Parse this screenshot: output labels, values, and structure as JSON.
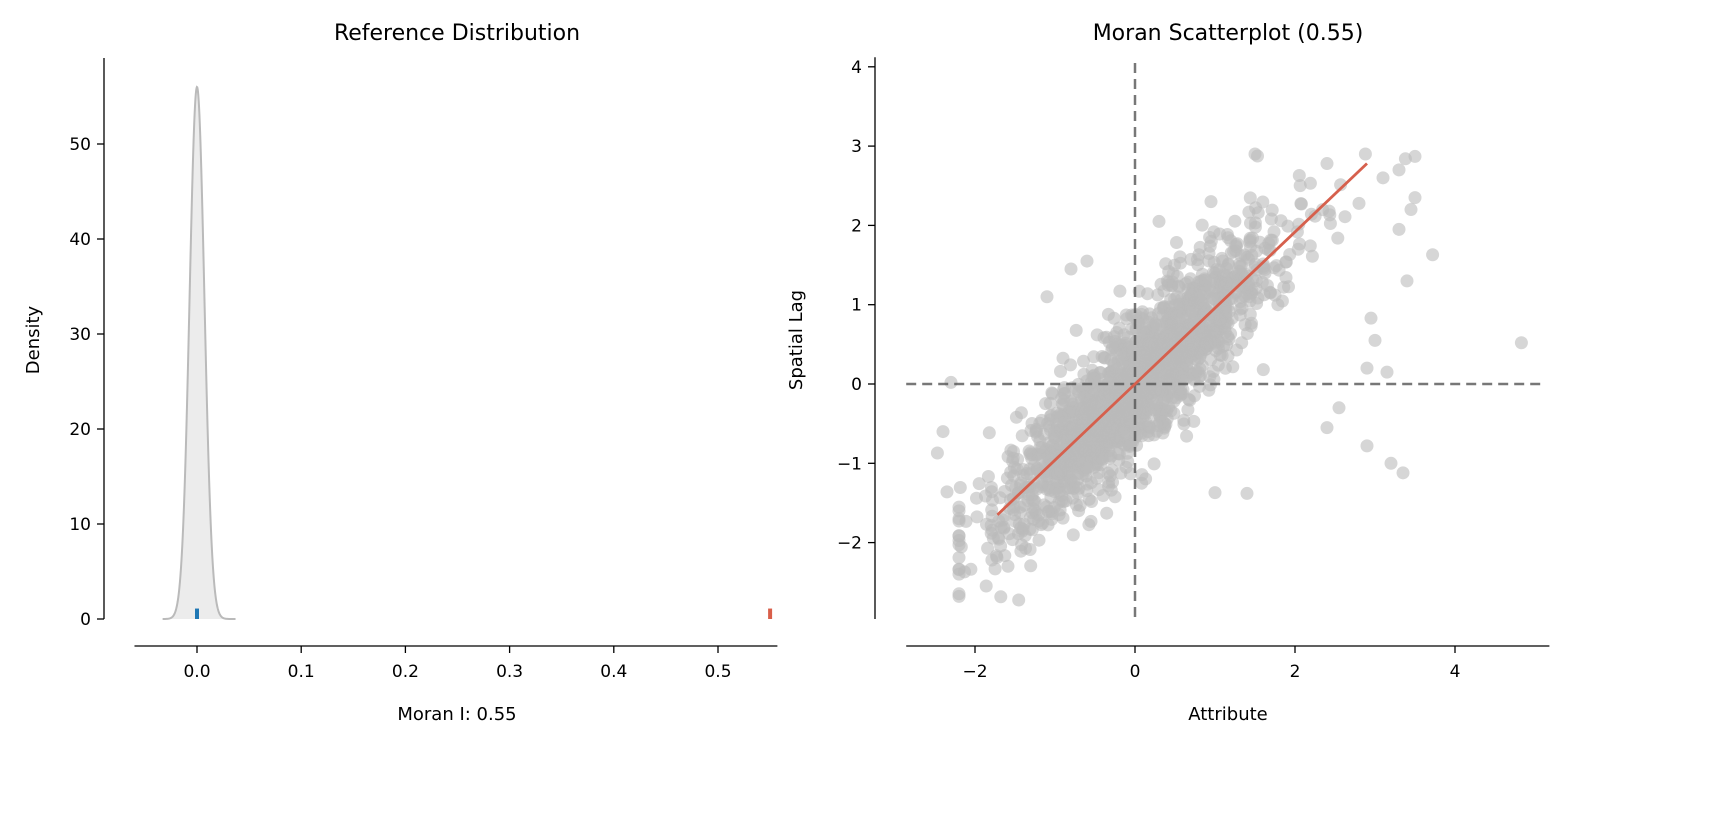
{
  "chart_data": [
    {
      "type": "area",
      "title": "Reference Distribution",
      "xlabel": "Moran I: 0.55",
      "ylabel": "Density",
      "xlim": [
        -0.06,
        0.557
      ],
      "ylim": [
        0,
        59
      ],
      "xticks": [
        0.0,
        0.1,
        0.2,
        0.3,
        0.4,
        0.5
      ],
      "xtick_labels": [
        "0.0",
        "0.1",
        "0.2",
        "0.3",
        "0.4",
        "0.5"
      ],
      "yticks": [
        0,
        10,
        20,
        30,
        40,
        50
      ],
      "ytick_labels": [
        "0",
        "10",
        "20",
        "30",
        "40",
        "50"
      ],
      "kde": {
        "mean": 0.0,
        "std": 0.0071,
        "peak": 56,
        "range": [
          -0.033,
          0.037
        ]
      },
      "expected_I": 0.0,
      "observed_I": 0.55,
      "colors": {
        "fill": "#ececec",
        "line": "#bababa",
        "expected": "#1f77b4",
        "observed": "#d95f4a"
      }
    },
    {
      "type": "scatter",
      "title": "Moran Scatterplot (0.55)",
      "xlabel": "Attribute",
      "ylabel": "Spatial Lag",
      "xlim": [
        -2.86,
        5.18
      ],
      "ylim": [
        -2.97,
        4.12
      ],
      "xticks": [
        -2,
        0,
        2,
        4
      ],
      "xtick_labels": [
        "−2",
        "0",
        "2",
        "4"
      ],
      "yticks": [
        -2,
        -1,
        0,
        1,
        2,
        3,
        4
      ],
      "ytick_labels": [
        "−2",
        "−1",
        "0",
        "1",
        "2",
        "3",
        "4"
      ],
      "fit_line": {
        "x": [
          -1.72,
          2.9
        ],
        "y": [
          -1.65,
          2.78
        ]
      },
      "reference_lines": {
        "x": 0,
        "y": 0
      },
      "cloud": {
        "n": 1800,
        "x_std": 0.85,
        "x_min": -2.2,
        "x_max": 2.8,
        "slope": 0.95,
        "noise_std": 0.42,
        "seed": 7
      },
      "outliers": [
        [
          4.83,
          0.52
        ],
        [
          3.72,
          1.63
        ],
        [
          3.5,
          2.87
        ],
        [
          3.38,
          2.84
        ],
        [
          3.3,
          2.7
        ],
        [
          2.88,
          2.9
        ],
        [
          1.5,
          2.9
        ],
        [
          -2.47,
          -0.87
        ],
        [
          -2.35,
          -1.36
        ],
        [
          -2.2,
          -1.7
        ],
        [
          3.35,
          -1.12
        ],
        [
          3.2,
          -1.0
        ],
        [
          2.4,
          -0.55
        ],
        [
          2.9,
          -0.78
        ],
        [
          1.0,
          -1.37
        ],
        [
          1.4,
          -1.38
        ],
        [
          -1.1,
          1.1
        ],
        [
          -0.6,
          1.55
        ],
        [
          -0.8,
          1.45
        ],
        [
          3.5,
          2.35
        ],
        [
          3.3,
          1.95
        ],
        [
          3.4,
          1.3
        ],
        [
          2.95,
          0.83
        ],
        [
          2.9,
          0.2
        ],
        [
          3.15,
          0.15
        ],
        [
          2.4,
          2.78
        ],
        [
          -2.3,
          0.02
        ],
        [
          -2.4,
          -0.6
        ],
        [
          3.45,
          2.2
        ],
        [
          3.1,
          2.6
        ],
        [
          0.95,
          2.3
        ],
        [
          0.3,
          2.05
        ],
        [
          2.55,
          -0.3
        ],
        [
          3.0,
          0.55
        ]
      ],
      "colors": {
        "points": "#bababa",
        "fit": "#d6604d",
        "ref": "#555555"
      }
    }
  ]
}
